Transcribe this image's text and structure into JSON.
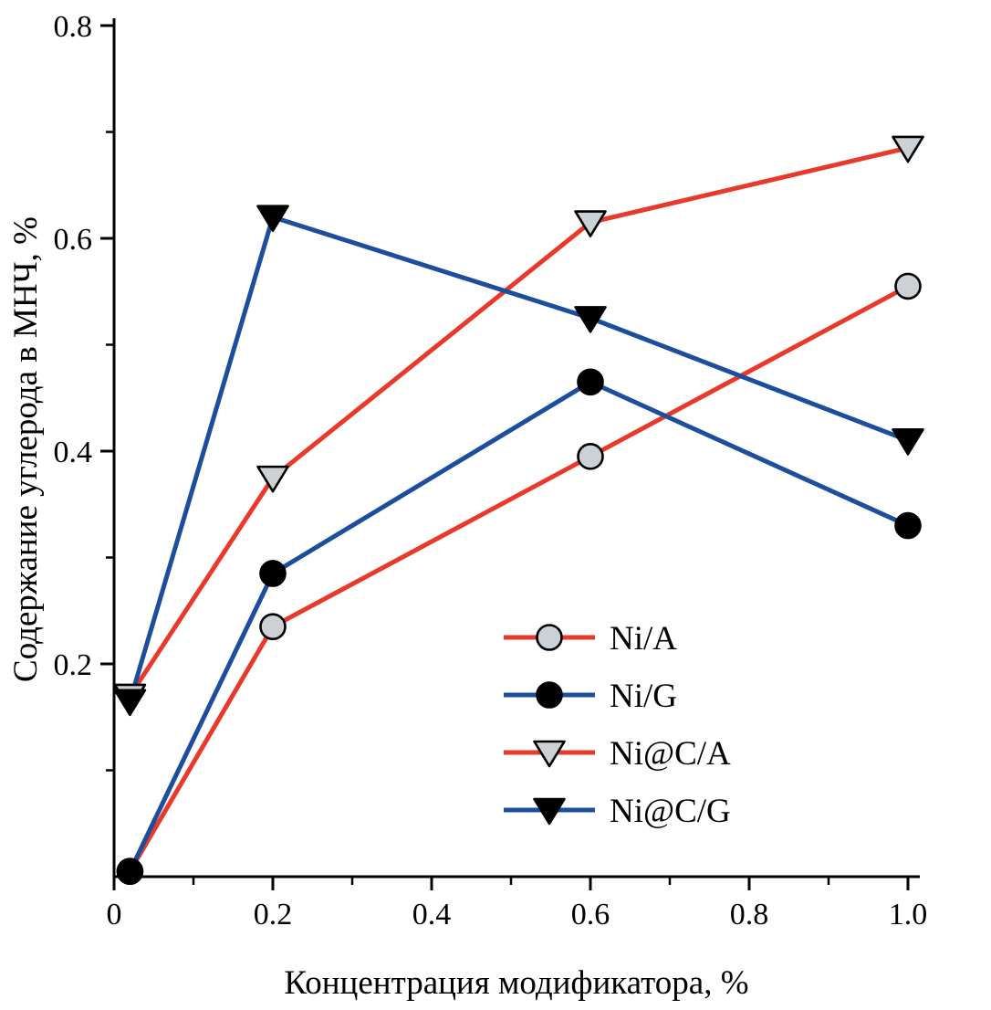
{
  "chart_data": {
    "type": "line",
    "title": "",
    "xlabel": "Концентрация модификатора, %",
    "ylabel": "Содержание углерода в МНЧ, %",
    "xlim": [
      0,
      1.015
    ],
    "ylim": [
      0,
      0.8
    ],
    "grid": false,
    "legend_position": "inside lower right",
    "x_ticks": [
      0,
      0.2,
      0.4,
      0.6,
      0.8,
      1.0
    ],
    "x_tick_labels": [
      "0",
      "0.2",
      "0.4",
      "0.6",
      "0.8",
      "1.0"
    ],
    "x_minor_ticks": [
      0.1,
      0.3,
      0.5,
      0.7,
      0.9
    ],
    "y_ticks": [
      0.2,
      0.4,
      0.6,
      0.8
    ],
    "y_tick_labels": [
      "0.2",
      "0.4",
      "0.6",
      "0.8"
    ],
    "y_minor_ticks": [
      0.1,
      0.3,
      0.5,
      0.7
    ],
    "x": [
      0.02,
      0.2,
      0.6,
      1.0
    ],
    "series": [
      {
        "name": "Ni/A",
        "line_color": "#e8392b",
        "marker": "circle",
        "marker_fill": "#ccd1d6",
        "marker_edge": "#000000",
        "values": [
          0.005,
          0.235,
          0.395,
          0.555
        ]
      },
      {
        "name": "Ni/G",
        "line_color": "#1d4e9e",
        "marker": "circle",
        "marker_fill": "#000000",
        "marker_edge": "#000000",
        "values": [
          0.005,
          0.285,
          0.465,
          0.33
        ]
      },
      {
        "name": "Ni@C/A",
        "line_color": "#e8392b",
        "marker": "triangle-down",
        "marker_fill": "#ccd1d6",
        "marker_edge": "#000000",
        "values": [
          0.17,
          0.375,
          0.615,
          0.685
        ]
      },
      {
        "name": "Ni@C/G",
        "line_color": "#1d4e9e",
        "marker": "triangle-down",
        "marker_fill": "#000000",
        "marker_edge": "#000000",
        "values": [
          0.165,
          0.62,
          0.525,
          0.41
        ]
      }
    ],
    "axis_color": "#000000"
  }
}
